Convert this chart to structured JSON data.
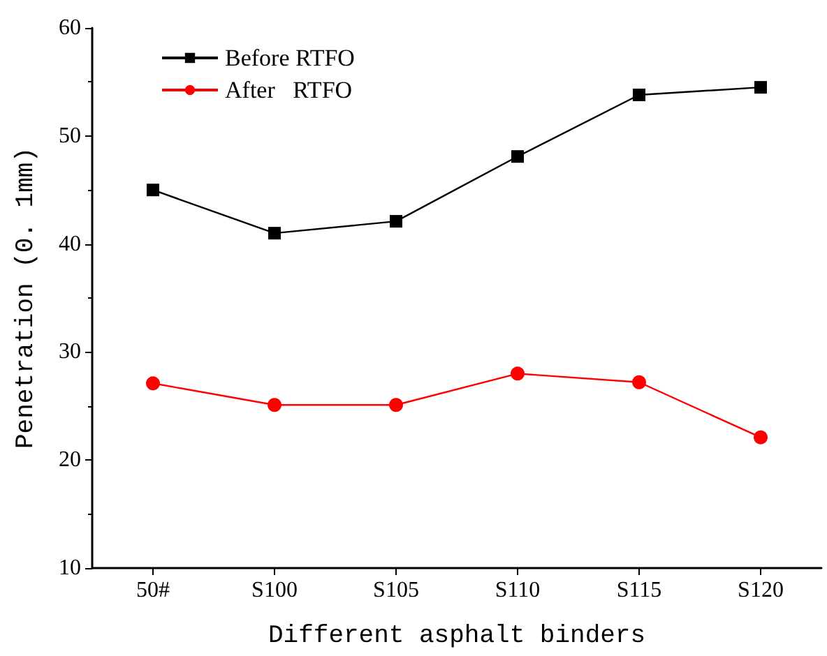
{
  "chart_data": {
    "type": "line",
    "xlabel": "Different asphalt binders",
    "ylabel": "Penetration (0. 1mm)",
    "categories": [
      "50#",
      "S100",
      "S105",
      "S110",
      "S115",
      "S120"
    ],
    "series": [
      {
        "name": "Before RTFO",
        "color": "#000000",
        "marker": "square",
        "values": [
          45,
          41,
          42.1,
          48.1,
          53.8,
          54.5
        ]
      },
      {
        "name": "After   RTFO",
        "color": "#ff0000",
        "marker": "circle",
        "values": [
          27.1,
          25.1,
          25.1,
          28,
          27.2,
          22.1
        ]
      }
    ],
    "ylim": [
      10,
      60
    ],
    "yticks": [
      10,
      20,
      30,
      40,
      50,
      60
    ],
    "grid": false,
    "legend": "top left"
  }
}
